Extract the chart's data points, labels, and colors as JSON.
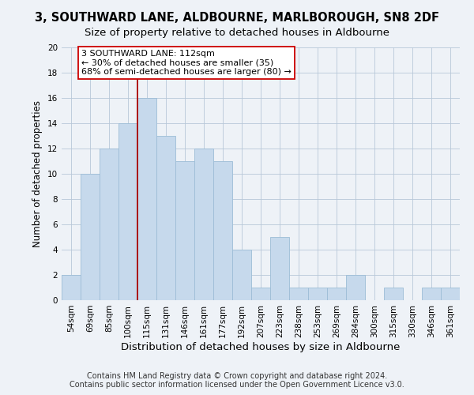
{
  "title": "3, SOUTHWARD LANE, ALDBOURNE, MARLBOROUGH, SN8 2DF",
  "subtitle": "Size of property relative to detached houses in Aldbourne",
  "xlabel": "Distribution of detached houses by size in Aldbourne",
  "ylabel": "Number of detached properties",
  "categories": [
    "54sqm",
    "69sqm",
    "85sqm",
    "100sqm",
    "115sqm",
    "131sqm",
    "146sqm",
    "161sqm",
    "177sqm",
    "192sqm",
    "207sqm",
    "223sqm",
    "238sqm",
    "253sqm",
    "269sqm",
    "284sqm",
    "300sqm",
    "315sqm",
    "330sqm",
    "346sqm",
    "361sqm"
  ],
  "values": [
    2,
    10,
    12,
    14,
    16,
    13,
    11,
    12,
    11,
    4,
    1,
    5,
    1,
    1,
    1,
    2,
    0,
    1,
    0,
    1,
    1
  ],
  "bar_color": "#c6d9ec",
  "bar_edge_color": "#9dbdd6",
  "vline_x": 3.5,
  "vline_color": "#aa0000",
  "annotation_text": "3 SOUTHWARD LANE: 112sqm\n← 30% of detached houses are smaller (35)\n68% of semi-detached houses are larger (80) →",
  "annotation_box_facecolor": "#ffffff",
  "annotation_box_edgecolor": "#cc0000",
  "ylim": [
    0,
    20
  ],
  "yticks": [
    0,
    2,
    4,
    6,
    8,
    10,
    12,
    14,
    16,
    18,
    20
  ],
  "footer": "Contains HM Land Registry data © Crown copyright and database right 2024.\nContains public sector information licensed under the Open Government Licence v3.0.",
  "title_fontsize": 10.5,
  "subtitle_fontsize": 9.5,
  "xlabel_fontsize": 9.5,
  "ylabel_fontsize": 8.5,
  "tick_fontsize": 7.5,
  "annotation_fontsize": 8,
  "footer_fontsize": 7,
  "background_color": "#eef2f7",
  "plot_background": "#eef2f7",
  "grid_color": "#b8c8d8"
}
